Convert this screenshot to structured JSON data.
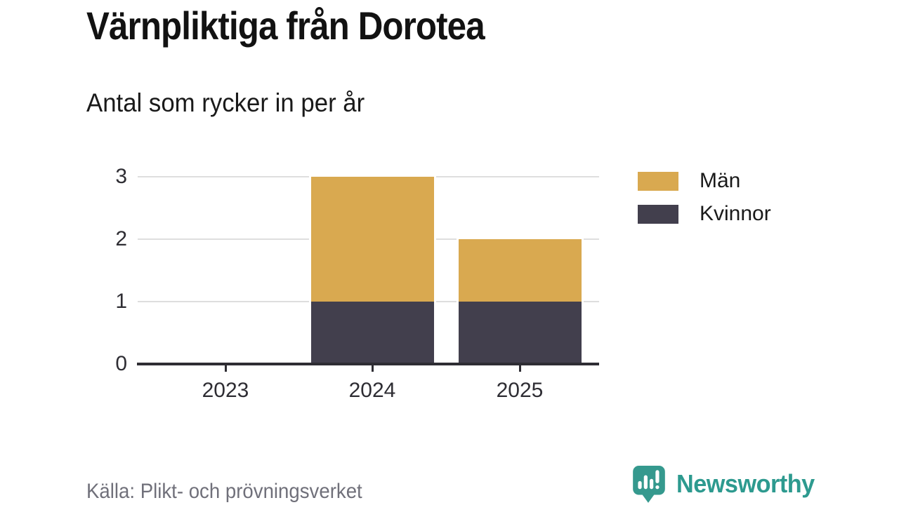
{
  "chart_data": {
    "type": "bar",
    "stacked": true,
    "title": "Värnpliktiga från Dorotea",
    "subtitle": "Antal som rycker in per år",
    "categories": [
      "2023",
      "2024",
      "2025"
    ],
    "series": [
      {
        "name": "Män",
        "color": "#d9a950",
        "values": [
          0,
          2,
          1
        ]
      },
      {
        "name": "Kvinnor",
        "color": "#423f4d",
        "values": [
          0,
          1,
          1
        ]
      }
    ],
    "totals": [
      0,
      3,
      2
    ],
    "yticks": [
      0,
      1,
      2,
      3
    ],
    "ylim": [
      0,
      3
    ],
    "grid": true,
    "legend_position": "right",
    "source": "Källa: Plikt- och prövningsverket"
  },
  "legend": [
    {
      "label": "Män",
      "color": "#d9a950"
    },
    {
      "label": "Kvinnor",
      "color": "#423f4d"
    }
  ],
  "brand": {
    "name": "Newsworthy",
    "color": "#2d9a8f",
    "icon": "newsworthy-speech-bubble-chart"
  },
  "colors": {
    "men": "#d9a950",
    "women": "#423f4d",
    "gridline": "#dedede",
    "axis": "#2e2d33",
    "title_text": "#121212",
    "muted_text": "#70707a"
  }
}
